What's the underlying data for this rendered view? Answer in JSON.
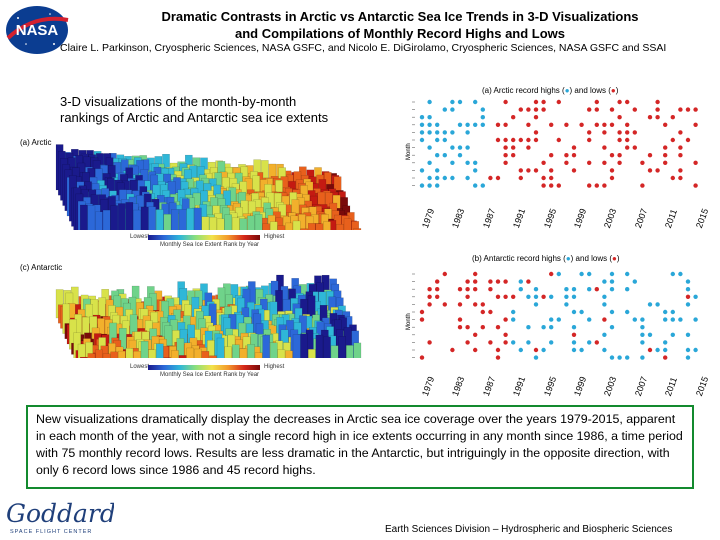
{
  "header": {
    "title_line1": "Dramatic Contrasts in Arctic vs Antarctic Sea Ice Trends in 3-D Visualizations",
    "title_line2": "and Compilations of Monthly Record Highs and Lows",
    "authors": "Claire L. Parkinson, Cryospheric Sciences, NASA GSFC, and Nicolo E. DiGirolamo, Cryospheric Sciences, NASA GSFC and SSAI",
    "logo_text": "NASA"
  },
  "intro": {
    "line1": "3-D visualizations of the month-by-month",
    "line2": "rankings of Arctic and Antarctic sea ice extents"
  },
  "viz3d": {
    "arctic_label": "(a) Arctic",
    "antarctic_label": "(c) Antarctic",
    "colorbar_low": "Lowest",
    "colorbar_high": "Highest",
    "colorbar_caption": "Monthly Sea Ice Extent Rank by Year"
  },
  "record_plots": {
    "arctic": {
      "title_pre": "(a) Arctic record highs (",
      "title_mid": ") and lows (",
      "title_post": ")",
      "ylabel": "Month"
    },
    "antarctic": {
      "title_pre": "(b) Antarctic record highs (",
      "title_mid": ") and lows (",
      "title_post": ")",
      "ylabel": "Month"
    },
    "years": [
      "1979",
      "1983",
      "1987",
      "1991",
      "1995",
      "1999",
      "2003",
      "2007",
      "2011",
      "2015"
    ],
    "colors": {
      "high": "#2aa7d8",
      "low": "#d42626"
    }
  },
  "summary": {
    "text": "New visualizations dramatically display the decreases in Arctic sea ice coverage over the years 1979-2015, apparent in each month of the year, with not a single record high in ice extents occurring in any month since 1986, a time period with 75 monthly record lows. Results are less dramatic in the Antarctic, but intriguingly in the opposite direction, with only 6 record lows since 1986 and 45 record highs."
  },
  "footer": {
    "goddard_text": "Goddard",
    "goddard_sub": "SPACE FLIGHT CENTER",
    "division": "Earth Sciences Division – Hydrospheric and Biospheric Sciences"
  }
}
